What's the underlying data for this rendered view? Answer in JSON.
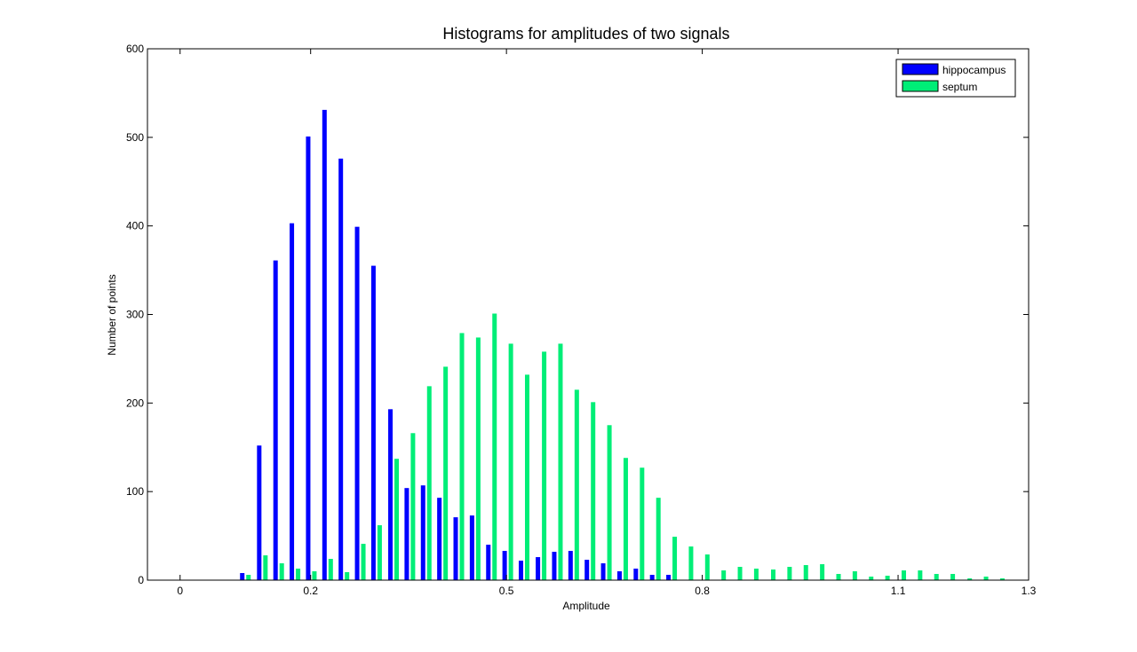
{
  "chart_data": {
    "type": "bar",
    "title": "Histograms for amplitudes of two signals",
    "xlabel": "Amplitude",
    "ylabel": "Number of points",
    "xlim": [
      -0.05,
      1.3
    ],
    "ylim": [
      0,
      600
    ],
    "xticks": [
      0,
      0.2,
      0.5,
      0.8,
      1.1,
      1.3
    ],
    "xtick_labels": [
      "0",
      "0.2",
      "0.5",
      "0.8",
      "1.1",
      "1.3"
    ],
    "yticks": [
      0,
      100,
      200,
      300,
      400,
      500,
      600
    ],
    "ytick_labels": [
      "0",
      "100",
      "200",
      "300",
      "400",
      "500",
      "600"
    ],
    "grid": false,
    "legend_position": "top-right",
    "series": [
      {
        "name": "hippocampus",
        "color": "#0000ff",
        "x": [
          0.1,
          0.126,
          0.151,
          0.176,
          0.201,
          0.226,
          0.251,
          0.276,
          0.301,
          0.327,
          0.352,
          0.377,
          0.402,
          0.427,
          0.452,
          0.477,
          0.502,
          0.527,
          0.553,
          0.578,
          0.603,
          0.628,
          0.653,
          0.678,
          0.703,
          0.728,
          0.753,
          0.778
        ],
        "values": [
          8,
          152,
          361,
          403,
          501,
          531,
          476,
          399,
          355,
          193,
          104,
          107,
          93,
          71,
          73,
          40,
          33,
          22,
          26,
          32,
          33,
          23,
          19,
          10,
          13,
          6,
          6,
          0
        ]
      },
      {
        "name": "septum",
        "color": "#00ee77",
        "x": [
          0.1,
          0.126,
          0.151,
          0.176,
          0.201,
          0.226,
          0.251,
          0.276,
          0.301,
          0.327,
          0.352,
          0.377,
          0.402,
          0.427,
          0.452,
          0.477,
          0.502,
          0.527,
          0.553,
          0.578,
          0.603,
          0.628,
          0.653,
          0.678,
          0.703,
          0.728,
          0.753,
          0.778,
          0.803,
          0.828,
          0.853,
          0.878,
          0.904,
          0.929,
          0.954,
          0.979,
          1.004,
          1.029,
          1.054,
          1.079,
          1.104,
          1.129,
          1.154,
          1.179,
          1.205,
          1.23,
          1.255
        ],
        "values": [
          6,
          28,
          19,
          13,
          10,
          24,
          9,
          41,
          62,
          137,
          166,
          219,
          241,
          279,
          274,
          301,
          267,
          232,
          258,
          267,
          215,
          201,
          175,
          138,
          127,
          93,
          49,
          38,
          29,
          11,
          15,
          13,
          12,
          15,
          17,
          18,
          7,
          10,
          4,
          5,
          11,
          11,
          7,
          7,
          2,
          4,
          2
        ]
      }
    ]
  }
}
